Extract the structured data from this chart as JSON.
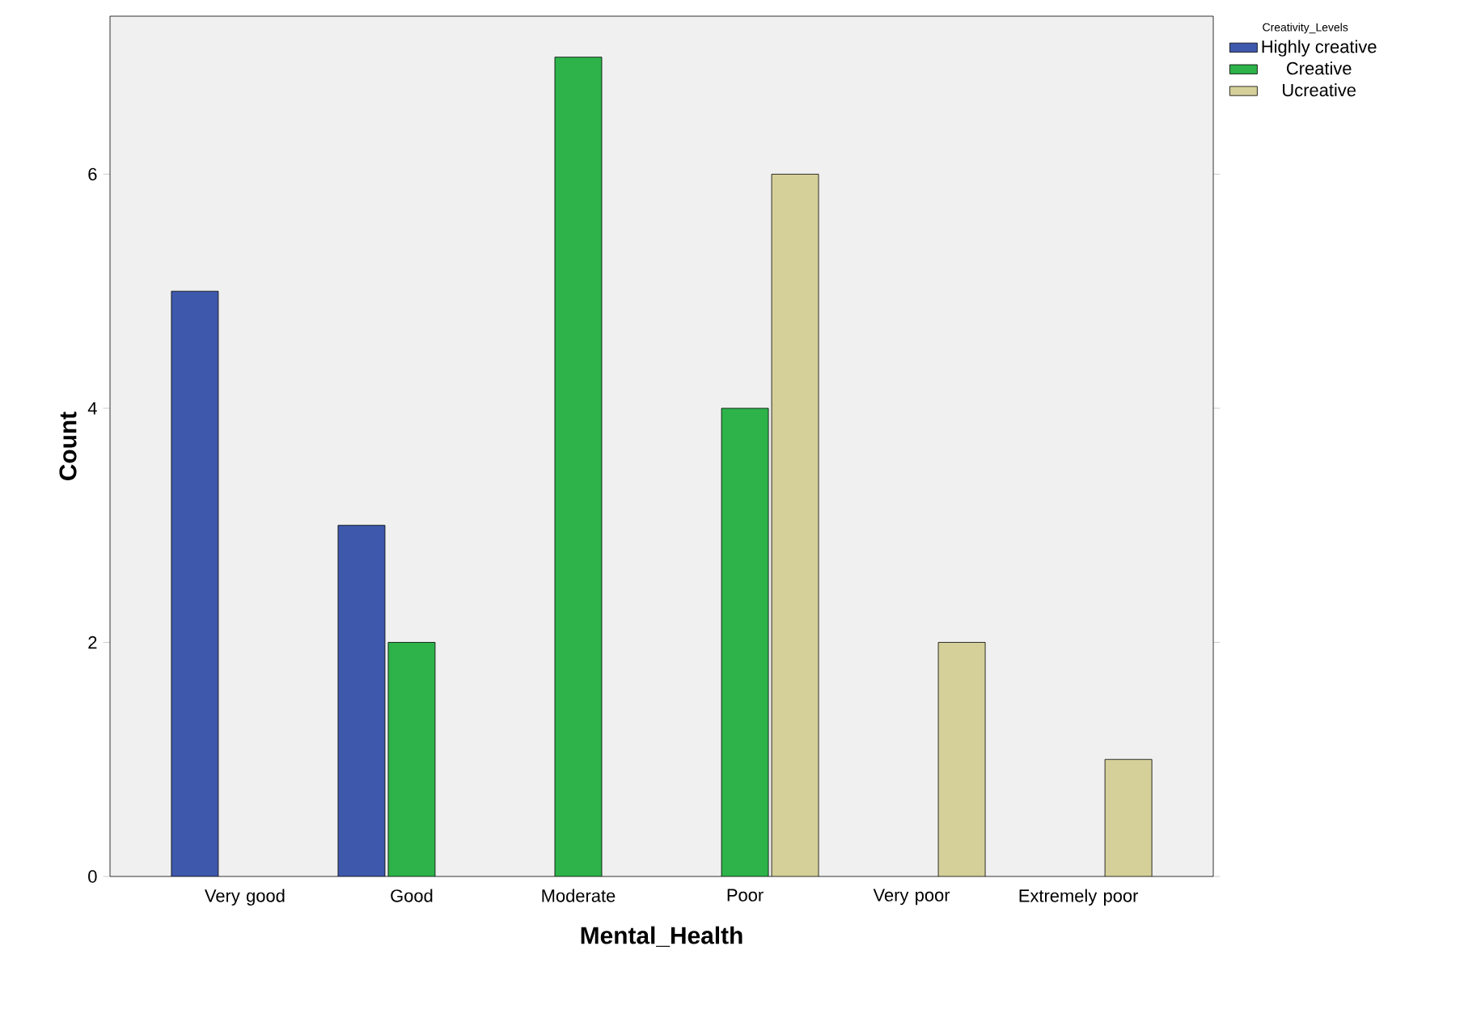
{
  "chart_data": {
    "type": "bar",
    "xlabel": "Mental_Health",
    "ylabel": "Count",
    "legend_title": "Creativity_Levels",
    "legend": "top right",
    "grid": false,
    "categories": [
      "Very good",
      "Good",
      "Moderate",
      "Poor",
      "Very poor",
      "Extremely poor"
    ],
    "ylim": [
      0,
      7.35
    ],
    "yticks": [
      0,
      2,
      4,
      6
    ],
    "series": [
      {
        "name": "Highly creative",
        "color": "#3e58ac",
        "values": [
          5,
          3,
          null,
          null,
          null,
          null
        ]
      },
      {
        "name": "Creative",
        "color": "#2db34a",
        "values": [
          null,
          2,
          7,
          4,
          null,
          null
        ]
      },
      {
        "name": "Ucreative",
        "color": "#d5cf99",
        "values": [
          null,
          null,
          null,
          6,
          2,
          1
        ]
      }
    ]
  }
}
